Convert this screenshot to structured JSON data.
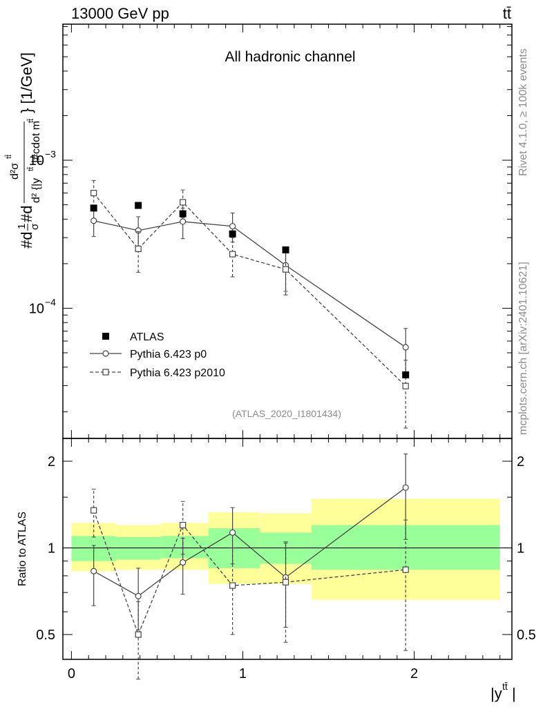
{
  "header": {
    "left_title": "13000 GeV pp",
    "right_title": "tt̄"
  },
  "side_labels": {
    "rivet": "Rivet 4.1.0, ≥ 100k events",
    "mcplots": "mcplots.cern.ch [arXiv:2401.10621]"
  },
  "chart_data": {
    "type": "line",
    "title": "All hadronic channel",
    "analysis_id": "(ATLAS_2020_I1801434)",
    "xlabel": "|y^{tt̄}|",
    "ylabel": "#d1σ#d d²σ^{tt̄} / d² {|y^{tt̄}|#cdot m^{tt̄}} [1/GeV]",
    "ratio_ylabel": "Ratio to ATLAS",
    "x_ticks": [
      "0",
      "1",
      "2"
    ],
    "y_ticks_main": [
      {
        "value": 0.0001,
        "label": "10^{−4}"
      },
      {
        "value": 0.001,
        "label": "10^{−3}"
      }
    ],
    "y_ticks_ratio": [
      "0.5",
      "1",
      "2"
    ],
    "xlim": [
      -0.05,
      2.57
    ],
    "ylim_main": [
      1.32e-05,
      0.0083
    ],
    "ylim_ratio": [
      0.41,
      2.4
    ],
    "y_scale": "log",
    "legend_position": "lower-left",
    "bins": [
      [
        0.0,
        0.26
      ],
      [
        0.26,
        0.52
      ],
      [
        0.52,
        0.8
      ],
      [
        0.8,
        1.1
      ],
      [
        1.1,
        1.4
      ],
      [
        1.4,
        2.5
      ]
    ],
    "band_green": [
      [
        0.9,
        1.1
      ],
      [
        0.91,
        1.09
      ],
      [
        0.92,
        1.1
      ],
      [
        0.85,
        1.17
      ],
      [
        0.88,
        1.13
      ],
      [
        0.84,
        1.2
      ]
    ],
    "band_yellow": [
      [
        0.83,
        1.22
      ],
      [
        0.84,
        1.2
      ],
      [
        0.84,
        1.22
      ],
      [
        0.75,
        1.33
      ],
      [
        0.75,
        1.32
      ],
      [
        0.66,
        1.48
      ]
    ],
    "series": [
      {
        "name": "ATLAS",
        "style": "data",
        "x": [
          0.13,
          0.39,
          0.65,
          0.94,
          1.25,
          1.95
        ],
        "y": [
          0.000475,
          0.000495,
          0.000435,
          0.000318,
          0.000248,
          3.55e-05
        ],
        "yerr_main": [
          [
            0.000475,
            0.000475
          ],
          [
            0.000495,
            0.000495
          ],
          [
            0.000435,
            0.000435
          ],
          [
            0.000318,
            0.000318
          ],
          [
            0.000248,
            0.000248
          ],
          [
            3.55e-05,
            3.55e-05
          ]
        ],
        "ratio": [
          1,
          1,
          1,
          1,
          1,
          1
        ]
      },
      {
        "name": "Pythia 6.423 p0",
        "style": "solid-circle",
        "color": "#444444",
        "x": [
          0.13,
          0.39,
          0.65,
          0.94,
          1.25,
          1.95
        ],
        "y": [
          0.00039,
          0.000335,
          0.000385,
          0.000358,
          0.000195,
          5.45e-05
        ],
        "yerr_main": [
          [
            0.000305,
            0.000475
          ],
          [
            0.000255,
            0.000415
          ],
          [
            0.000295,
            0.000475
          ],
          [
            0.00028,
            0.00044
          ],
          [
            0.00013,
            0.00026
          ],
          [
            3.6e-05,
            7.3e-05
          ]
        ],
        "ratio": [
          0.83,
          0.68,
          0.89,
          1.13,
          0.79,
          1.62
        ],
        "ratio_err": [
          [
            0.63,
            1.02
          ],
          [
            0.52,
            0.85
          ],
          [
            0.69,
            1.08
          ],
          [
            0.88,
            1.38
          ],
          [
            0.53,
            1.04
          ],
          [
            1.07,
            2.12
          ]
        ]
      },
      {
        "name": "Pythia 6.423 p2010",
        "style": "dashed-square",
        "color": "#444444",
        "x": [
          0.13,
          0.39,
          0.65,
          0.94,
          1.25,
          1.95
        ],
        "y": [
          0.0006,
          0.000252,
          0.00052,
          0.000232,
          0.000183,
          2.98e-05
        ],
        "yerr_main": [
          [
            0.00048,
            0.00073
          ],
          [
            0.000175,
            0.00033
          ],
          [
            0.00041,
            0.00063
          ],
          [
            0.000163,
            0.0003
          ],
          [
            0.000123,
            0.000242
          ],
          [
            1.55e-05,
            4.45e-05
          ]
        ],
        "ratio": [
          1.35,
          0.5,
          1.2,
          0.74,
          0.76,
          0.84
        ],
        "ratio_err": [
          [
            1.09,
            1.6
          ],
          [
            0.35,
            0.65
          ],
          [
            0.95,
            1.45
          ],
          [
            0.5,
            1.0
          ],
          [
            0.47,
            1.05
          ],
          [
            0.44,
            1.25
          ]
        ]
      }
    ]
  }
}
